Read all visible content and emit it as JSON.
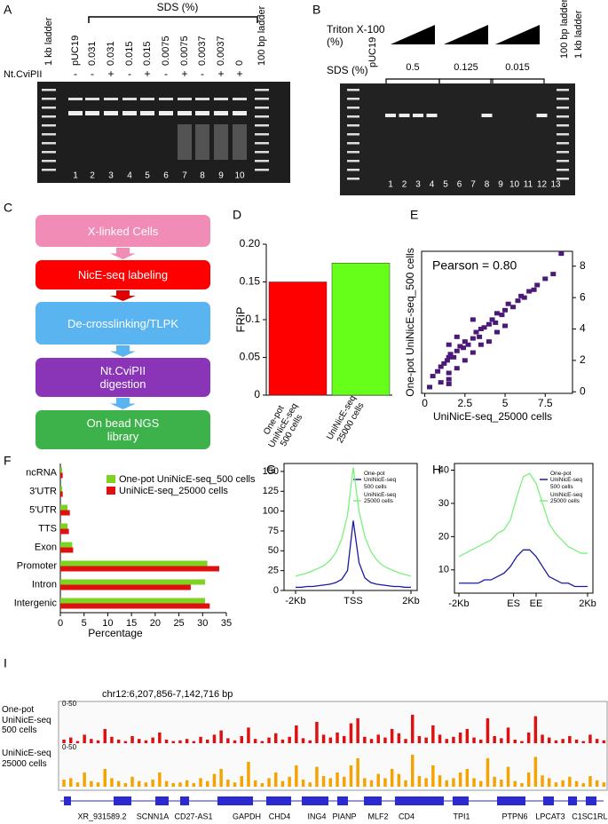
{
  "panel_a": {
    "letter": "A",
    "sds_label": "SDS (%)",
    "lanes": [
      "1 kb ladder",
      "pUC19",
      "0.031",
      "0.031",
      "0.015",
      "0.015",
      "0.0075",
      "0.0075",
      "0.0037",
      "0.0037",
      "0",
      "100 bp ladder"
    ],
    "enzyme_label": "Nt.CviPII",
    "enzyme_signs": [
      "-",
      "-",
      "+",
      "-",
      "+",
      "-",
      "+",
      "-",
      "+",
      "+"
    ],
    "lane_numbers": [
      1,
      2,
      3,
      4,
      5,
      6,
      7,
      8,
      9,
      10
    ]
  },
  "panel_b": {
    "letter": "B",
    "triton_label": [
      "Triton X-100",
      "(%)"
    ],
    "sds_label": "SDS (%)",
    "sds_values": [
      "0.5",
      "0.125",
      "0.015"
    ],
    "lane_left": "pUC19",
    "lanes_right": [
      "100 bp ladder",
      "1 kb ladder"
    ],
    "lane_numbers": [
      1,
      2,
      3,
      4,
      5,
      6,
      7,
      8,
      9,
      10,
      11,
      12,
      13
    ]
  },
  "panel_c": {
    "letter": "C",
    "steps": [
      "X-linked Cells",
      "NicE-seq labeling",
      "De-crosslinking/TLPK",
      "Nt.CviPII digestion",
      "On bead NGS library"
    ]
  },
  "chart_data": [
    {
      "type": "bar",
      "letter": "D",
      "ylabel": "FRiP",
      "categories": [
        "One-pot UniNicE-seq 500 cells",
        "UniNicE-seq 25000 cells"
      ],
      "values": [
        0.15,
        0.175
      ],
      "colors": [
        "#ff0000",
        "#66ff1a"
      ],
      "ylim": [
        0,
        0.2
      ],
      "yticks": [
        0,
        0.05,
        0.1,
        0.15,
        {
          "value": 0.2,
          "label": "0.20"
        }
      ]
    },
    {
      "type": "scatter",
      "letter": "E",
      "annotation": "Pearson = 0.80",
      "xlabel": "UniNicE-seq_25000 cells",
      "ylabel": "One-pot UniNicE-seq_500 cells",
      "color": "#4b1a78",
      "x": [
        0.3,
        0.5,
        0.8,
        1.0,
        1.2,
        1.4,
        1.5,
        1.5,
        1.5,
        1.6,
        1.8,
        2.0,
        2.2,
        2.4,
        2.5,
        2.7,
        3.0,
        3.2,
        3.4,
        3.5,
        3.7,
        4.0,
        4.2,
        4.4,
        4.5,
        4.8,
        5.0,
        5.2,
        5.5,
        5.8,
        6.0,
        6.2,
        6.5,
        6.8,
        7.0,
        7.5,
        8.0,
        8.5,
        1.5,
        1.5,
        2.0,
        2.5,
        3.0,
        3.5,
        4.0,
        4.5,
        5.0,
        1.0,
        2.0,
        3.0
      ],
      "y": [
        0.3,
        1.0,
        1.3,
        1.6,
        1.8,
        2.0,
        0.8,
        1.2,
        3.0,
        2.4,
        2.2,
        2.6,
        2.9,
        2.8,
        3.2,
        3.0,
        3.4,
        3.8,
        3.5,
        4.0,
        4.1,
        4.3,
        4.6,
        4.4,
        5.0,
        4.9,
        5.2,
        5.6,
        5.4,
        5.8,
        6.1,
        6.0,
        6.4,
        6.5,
        6.8,
        7.2,
        7.5,
        8.8,
        0.5,
        2.2,
        1.5,
        2.0,
        2.5,
        3.0,
        3.2,
        3.8,
        4.2,
        0.6,
        3.5,
        4.6
      ],
      "xlim": [
        -0.2,
        9.2
      ],
      "xticks": [
        0,
        2.5,
        5,
        7.5
      ],
      "ylim": [
        -0.1,
        8.95
      ],
      "yticks": [
        0,
        2,
        4,
        6,
        8
      ]
    },
    {
      "type": "hbar",
      "letter": "F",
      "xlabel": "Percentage",
      "categories": [
        "ncRNA",
        "3'UTR",
        "5'UTR",
        "TTS",
        "Exon",
        "Promoter",
        "Intron",
        "Intergenic"
      ],
      "series": [
        {
          "name": "One-pot UniNicE-seq_500 cells",
          "color": "#7ed321",
          "values": [
            0.4,
            0.4,
            1.5,
            1.5,
            2.5,
            31,
            30.5,
            30.5
          ]
        },
        {
          "name": "UniNicE-seq_25000 cells",
          "color": "#e01010",
          "values": [
            0.5,
            0.5,
            2,
            1.8,
            2.7,
            33.5,
            27.5,
            31.5
          ]
        }
      ],
      "xlim": [
        0,
        35
      ],
      "xticks": [
        0,
        5,
        10,
        15,
        20,
        25,
        30,
        35
      ]
    },
    {
      "type": "line",
      "letter": "G",
      "x": [
        -2000,
        -1800,
        -1600,
        -1400,
        -1200,
        -1000,
        -800,
        -600,
        -400,
        -200,
        0,
        200,
        400,
        600,
        800,
        1000,
        1200,
        1400,
        1600,
        1800,
        2000
      ],
      "series": [
        {
          "name": "One-pot UniNicE-seq 500 cells",
          "color": "#1a1aa0",
          "values": [
            4,
            4,
            5,
            5,
            6,
            7,
            8,
            10,
            14,
            25,
            88,
            35,
            16,
            10,
            8,
            7,
            6,
            5,
            5,
            4,
            4
          ]
        },
        {
          "name": "UniNicE-seq 25000 cells",
          "color": "#7cf07c",
          "values": [
            18,
            20,
            22,
            25,
            28,
            32,
            38,
            48,
            65,
            95,
            155,
            100,
            68,
            50,
            39,
            32,
            28,
            25,
            22,
            20,
            18
          ]
        }
      ],
      "xlim": [
        -2000,
        2000
      ],
      "xticks": [
        {
          "value": -2000,
          "label": "-2Kb"
        },
        {
          "value": 0,
          "label": "TSS"
        },
        {
          "value": 2000,
          "label": "2Kb"
        }
      ],
      "ylim": [
        0,
        160
      ],
      "yticks": [
        0,
        25,
        50,
        75,
        100,
        125,
        150
      ]
    },
    {
      "type": "line",
      "letter": "H",
      "x": [
        -2000,
        -1800,
        -1600,
        -1400,
        -1200,
        -1000,
        -800,
        -600,
        -400,
        -200,
        0,
        200,
        400,
        600,
        800,
        1000,
        1200,
        1400,
        1600,
        1800,
        2000
      ],
      "series": [
        {
          "name": "One-pot UniNicE-seq 500 cells",
          "color": "#1a1aa0",
          "values": [
            6,
            6,
            6,
            6,
            7,
            7,
            8,
            9,
            11,
            14,
            16,
            16,
            14,
            11,
            8,
            7,
            6,
            6,
            5,
            5,
            5
          ]
        },
        {
          "name": "UniNicE-seq 25000 cells",
          "color": "#7cf07c",
          "values": [
            14,
            15,
            16,
            17,
            18,
            19,
            21,
            22,
            25,
            32,
            38,
            39,
            36,
            30,
            24,
            21,
            19,
            17,
            16,
            15,
            15
          ]
        }
      ],
      "xlim": [
        -2000,
        2000
      ],
      "xticks": [
        {
          "value": -2000,
          "label": "-2Kb"
        },
        {
          "value": -300,
          "label": "ES"
        },
        {
          "value": 400,
          "label": "EE"
        },
        {
          "value": 2000,
          "label": "2Kb"
        }
      ],
      "ylim": [
        3,
        42
      ],
      "yticks": [
        10,
        20,
        30,
        40
      ]
    }
  ],
  "panel_i": {
    "letter": "I",
    "region": "chr12:6,207,856-7,142,716 bp",
    "ylim": [
      0,
      50
    ],
    "tracks": [
      {
        "name": "One-pot UniNicE-seq 500 cells",
        "range": "0-50",
        "color": "#e01010",
        "values": [
          5,
          8,
          3,
          12,
          6,
          4,
          20,
          9,
          5,
          3,
          10,
          6,
          4,
          8,
          15,
          5,
          3,
          4,
          6,
          3,
          9,
          5,
          12,
          18,
          7,
          4,
          10,
          22,
          6,
          3,
          8,
          14,
          5,
          9,
          25,
          7,
          4,
          30,
          12,
          8,
          15,
          10,
          28,
          35,
          9,
          6,
          12,
          8,
          20,
          14,
          6,
          40,
          10,
          8,
          25,
          12,
          6,
          9,
          15,
          20,
          8,
          5,
          35,
          10,
          7,
          22,
          5,
          3,
          15,
          38,
          12,
          8,
          4,
          6,
          10,
          5,
          3,
          12,
          6,
          4
        ]
      },
      {
        "name": "UniNicE-seq 25000 cells",
        "range": "0-50",
        "color": "#f5a300",
        "values": [
          10,
          12,
          6,
          20,
          8,
          6,
          25,
          12,
          8,
          5,
          14,
          8,
          6,
          10,
          20,
          8,
          5,
          6,
          9,
          5,
          12,
          8,
          18,
          25,
          10,
          6,
          15,
          35,
          9,
          5,
          12,
          20,
          8,
          14,
          30,
          10,
          6,
          28,
          15,
          12,
          20,
          14,
          30,
          40,
          12,
          9,
          18,
          12,
          25,
          18,
          9,
          45,
          15,
          12,
          30,
          16,
          9,
          12,
          20,
          25,
          12,
          8,
          40,
          14,
          10,
          28,
          8,
          5,
          20,
          42,
          16,
          12,
          6,
          9,
          14,
          8,
          5,
          15,
          9,
          6
        ]
      }
    ],
    "genes": [
      "XR_931589.2",
      "SCNN1A",
      "CD27-AS1",
      "GAPDH",
      "CHD4",
      "ING4",
      "PIANP",
      "MLF2",
      "CD4",
      "TPI1",
      "PTPN6",
      "LPCAT3",
      "C1S",
      "C1RL"
    ]
  }
}
